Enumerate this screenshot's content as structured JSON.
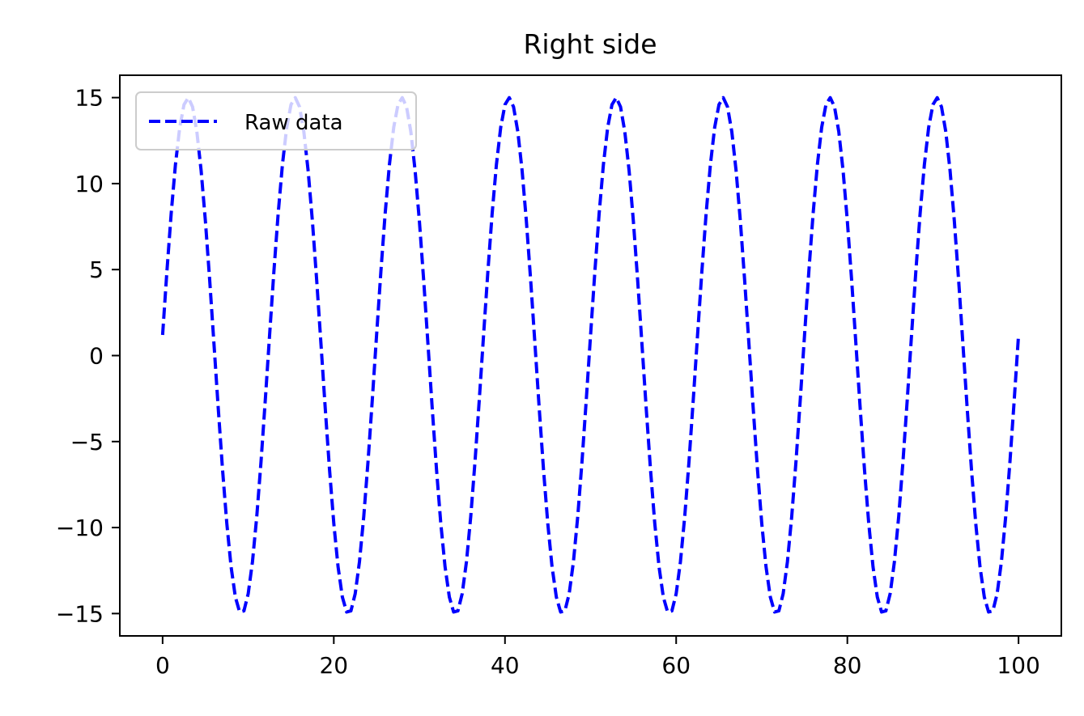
{
  "chart_data": {
    "type": "line",
    "title": "Right side",
    "xlabel": "",
    "ylabel": "",
    "xlim": [
      -5,
      105
    ],
    "ylim": [
      -16.3,
      16.3
    ],
    "x_ticks": [
      0,
      20,
      40,
      60,
      80,
      100
    ],
    "y_ticks": [
      15,
      10,
      5,
      0,
      -5,
      -10,
      -15
    ],
    "x_tick_labels": [
      "0",
      "20",
      "40",
      "60",
      "80",
      "100"
    ],
    "y_tick_labels": [
      "15",
      "10",
      "5",
      "0",
      "−5",
      "−10",
      "−15"
    ],
    "grid": false,
    "legend_position": "upper left",
    "series": [
      {
        "name": "Raw data",
        "color": "#0000ff",
        "linestyle": "dashed",
        "x_start": 0,
        "x_end": 100,
        "amplitude": 15,
        "period": 12.5,
        "phase_offset": 0.08,
        "sample_step": 0.5
      }
    ]
  }
}
